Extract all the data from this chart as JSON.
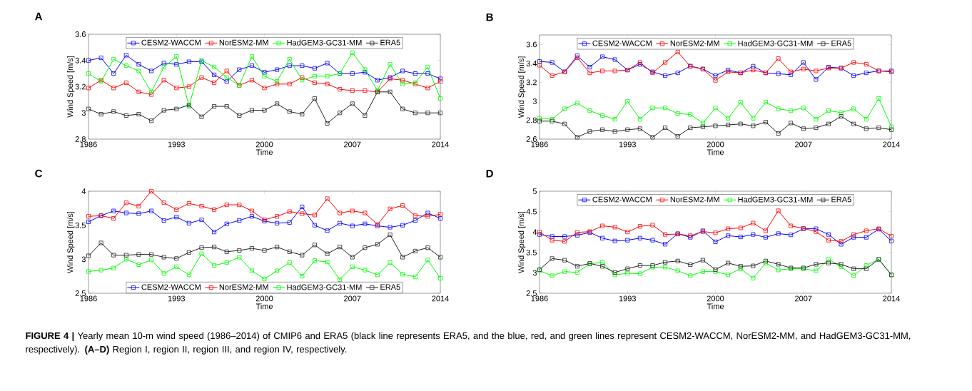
{
  "chart_data": [
    {
      "type": "line",
      "title": "A",
      "xlabel": "Time",
      "ylabel": "Wind Speed [m/s]",
      "x": [
        1986,
        1987,
        1988,
        1989,
        1990,
        1991,
        1992,
        1993,
        1994,
        1995,
        1996,
        1997,
        1998,
        1999,
        2000,
        2001,
        2002,
        2003,
        2004,
        2005,
        2006,
        2007,
        2008,
        2009,
        2010,
        2011,
        2012,
        2013,
        2014
      ],
      "xlim": [
        1986,
        2014
      ],
      "xticks": [
        1986,
        1993,
        2000,
        2007,
        2014
      ],
      "ylim": [
        2.8,
        3.6
      ],
      "yticks": [
        2.8,
        3,
        3.2,
        3.4,
        3.6
      ],
      "legend": "top",
      "marker": "square",
      "line_style": "solid",
      "series": [
        {
          "name": "CESM2-WACCM",
          "color": "#0000ff",
          "values": [
            3.4,
            3.42,
            3.3,
            3.44,
            3.37,
            3.32,
            3.38,
            3.37,
            3.39,
            3.39,
            3.29,
            3.24,
            3.33,
            3.36,
            3.31,
            3.33,
            3.36,
            3.36,
            3.34,
            3.38,
            3.3,
            3.3,
            3.31,
            3.25,
            3.27,
            3.32,
            3.3,
            3.3,
            3.26
          ]
        },
        {
          "name": "NorESM2-MM",
          "color": "#ff0000",
          "values": [
            3.19,
            3.25,
            3.19,
            3.23,
            3.16,
            3.14,
            3.25,
            3.19,
            3.2,
            3.27,
            3.23,
            3.32,
            3.21,
            3.25,
            3.19,
            3.22,
            3.22,
            3.27,
            3.23,
            3.22,
            3.18,
            3.17,
            3.17,
            3.16,
            3.26,
            3.25,
            3.22,
            3.19,
            3.24
          ]
        },
        {
          "name": "HadGEM3-GC31-MM",
          "color": "#00ff00",
          "values": [
            3.3,
            3.24,
            3.41,
            3.36,
            3.32,
            3.16,
            3.35,
            3.43,
            3.05,
            3.4,
            3.35,
            3.27,
            3.21,
            3.43,
            3.28,
            3.24,
            3.41,
            3.25,
            3.28,
            3.28,
            3.3,
            3.46,
            3.33,
            3.17,
            3.37,
            3.22,
            3.23,
            3.35,
            3.11
          ]
        },
        {
          "name": "ERA5",
          "color": "#222222",
          "values": [
            3.03,
            2.99,
            3.01,
            2.98,
            2.99,
            2.94,
            3.02,
            3.03,
            3.06,
            2.97,
            3.05,
            3.05,
            2.98,
            3.02,
            3.02,
            3.07,
            3.01,
            2.99,
            3.11,
            2.92,
            3.0,
            3.07,
            2.98,
            3.16,
            3.16,
            3.03,
            3.0,
            3.0,
            3.0
          ]
        }
      ]
    },
    {
      "type": "line",
      "title": "B",
      "xlabel": "Time",
      "ylabel": "Wind Speed [m/s]",
      "x": [
        1986,
        1987,
        1988,
        1989,
        1990,
        1991,
        1992,
        1993,
        1994,
        1995,
        1996,
        1997,
        1998,
        1999,
        2000,
        2001,
        2002,
        2003,
        2004,
        2005,
        2006,
        2007,
        2008,
        2009,
        2010,
        2011,
        2012,
        2013,
        2014
      ],
      "xlim": [
        1986,
        2014
      ],
      "xticks": [
        1986,
        1993,
        2000,
        2007,
        2014
      ],
      "ylim": [
        2.6,
        3.7
      ],
      "yticks": [
        2.6,
        2.8,
        3,
        3.2,
        3.4,
        3.6
      ],
      "legend": "top",
      "marker": "square",
      "line_style": "solid",
      "series": [
        {
          "name": "CESM2-WACCM",
          "color": "#0000ff",
          "values": [
            3.42,
            3.41,
            3.31,
            3.48,
            3.36,
            3.47,
            3.44,
            3.33,
            3.39,
            3.31,
            3.27,
            3.3,
            3.37,
            3.34,
            3.27,
            3.33,
            3.3,
            3.37,
            3.3,
            3.29,
            3.28,
            3.41,
            3.23,
            3.36,
            3.35,
            3.27,
            3.3,
            3.32,
            3.32
          ]
        },
        {
          "name": "NorESM2-MM",
          "color": "#ff0000",
          "values": [
            3.38,
            3.27,
            3.31,
            3.46,
            3.3,
            3.32,
            3.32,
            3.33,
            3.41,
            3.3,
            3.41,
            3.52,
            3.37,
            3.34,
            3.22,
            3.31,
            3.3,
            3.33,
            3.3,
            3.45,
            3.31,
            3.34,
            3.32,
            3.35,
            3.35,
            3.41,
            3.39,
            3.32,
            3.31
          ]
        },
        {
          "name": "HadGEM3-GC31-MM",
          "color": "#00ff00",
          "values": [
            2.82,
            2.81,
            2.92,
            2.98,
            2.9,
            2.85,
            2.81,
            3.0,
            2.81,
            2.93,
            2.93,
            2.87,
            2.86,
            2.77,
            2.93,
            2.82,
            2.99,
            2.82,
            2.99,
            2.92,
            2.9,
            2.93,
            2.81,
            2.9,
            2.88,
            2.92,
            2.81,
            3.03,
            2.73
          ]
        },
        {
          "name": "ERA5",
          "color": "#222222",
          "values": [
            2.79,
            2.79,
            2.76,
            2.62,
            2.68,
            2.7,
            2.68,
            2.7,
            2.71,
            2.62,
            2.72,
            2.63,
            2.72,
            2.73,
            2.74,
            2.75,
            2.76,
            2.74,
            2.78,
            2.66,
            2.77,
            2.71,
            2.72,
            2.76,
            2.84,
            2.76,
            2.71,
            2.72,
            2.7
          ]
        }
      ]
    },
    {
      "type": "line",
      "title": "C",
      "xlabel": "Time",
      "ylabel": "Wind Speed [m/s]",
      "x": [
        1986,
        1987,
        1988,
        1989,
        1990,
        1991,
        1992,
        1993,
        1994,
        1995,
        1996,
        1997,
        1998,
        1999,
        2000,
        2001,
        2002,
        2003,
        2004,
        2005,
        2006,
        2007,
        2008,
        2009,
        2010,
        2011,
        2012,
        2013,
        2014
      ],
      "xlim": [
        1986,
        2014
      ],
      "xticks": [
        1986,
        1993,
        2000,
        2007,
        2014
      ],
      "ylim": [
        2.5,
        4
      ],
      "yticks": [
        2.5,
        3,
        3.5,
        4
      ],
      "legend": "bottom",
      "marker": "square",
      "line_style": "solid",
      "series": [
        {
          "name": "CESM2-WACCM",
          "color": "#0000ff",
          "values": [
            3.55,
            3.64,
            3.71,
            3.68,
            3.67,
            3.71,
            3.57,
            3.62,
            3.53,
            3.58,
            3.4,
            3.52,
            3.57,
            3.63,
            3.56,
            3.53,
            3.54,
            3.77,
            3.5,
            3.42,
            3.53,
            3.49,
            3.52,
            3.49,
            3.47,
            3.5,
            3.57,
            3.68,
            3.6
          ]
        },
        {
          "name": "NorESM2-MM",
          "color": "#ff0000",
          "values": [
            3.63,
            3.64,
            3.6,
            3.83,
            3.78,
            4.0,
            3.83,
            3.73,
            3.82,
            3.78,
            3.73,
            3.8,
            3.8,
            3.71,
            3.58,
            3.63,
            3.7,
            3.67,
            3.65,
            3.89,
            3.68,
            3.71,
            3.68,
            3.51,
            3.74,
            3.79,
            3.64,
            3.63,
            3.66
          ]
        },
        {
          "name": "HadGEM3-GC31-MM",
          "color": "#00ff00",
          "values": [
            2.82,
            2.84,
            2.87,
            3.0,
            2.92,
            2.99,
            2.79,
            2.89,
            2.77,
            3.08,
            2.91,
            2.95,
            3.03,
            2.83,
            2.71,
            2.83,
            2.95,
            2.75,
            2.98,
            2.96,
            2.7,
            2.89,
            2.84,
            2.77,
            2.95,
            2.78,
            2.74,
            2.99,
            2.72
          ]
        },
        {
          "name": "ERA5",
          "color": "#222222",
          "values": [
            3.05,
            3.24,
            3.06,
            3.06,
            3.07,
            3.07,
            3.03,
            3.01,
            3.1,
            3.17,
            3.18,
            3.11,
            3.13,
            3.16,
            3.13,
            3.18,
            3.11,
            3.06,
            3.21,
            3.08,
            3.18,
            3.03,
            3.17,
            3.22,
            3.36,
            3.03,
            3.12,
            3.17,
            3.03
          ]
        }
      ]
    },
    {
      "type": "line",
      "title": "D",
      "xlabel": "Time",
      "ylabel": "Wind Speed [m/s]",
      "x": [
        1986,
        1987,
        1988,
        1989,
        1990,
        1991,
        1992,
        1993,
        1994,
        1995,
        1996,
        1997,
        1998,
        1999,
        2000,
        2001,
        2002,
        2003,
        2004,
        2005,
        2006,
        2007,
        2008,
        2009,
        2010,
        2011,
        2012,
        2013,
        2014
      ],
      "xlim": [
        1986,
        2014
      ],
      "xticks": [
        1986,
        1993,
        2000,
        2007,
        2014
      ],
      "ylim": [
        2.5,
        5
      ],
      "yticks": [
        2.5,
        3,
        3.5,
        4,
        4.5,
        5
      ],
      "legend": "top",
      "marker": "square",
      "line_style": "solid",
      "series": [
        {
          "name": "CESM2-WACCM",
          "color": "#0000ff",
          "values": [
            3.94,
            3.89,
            3.89,
            3.92,
            3.99,
            3.85,
            3.78,
            3.8,
            3.85,
            3.8,
            3.7,
            3.96,
            3.87,
            4.03,
            3.76,
            3.91,
            3.88,
            3.94,
            3.87,
            3.96,
            3.93,
            4.08,
            4.08,
            3.94,
            3.7,
            3.87,
            3.87,
            4.07,
            3.78
          ]
        },
        {
          "name": "NorESM2-MM",
          "color": "#ff0000",
          "values": [
            4.0,
            3.8,
            3.77,
            3.99,
            4.01,
            4.15,
            4.12,
            4.0,
            4.14,
            4.17,
            3.94,
            3.95,
            3.91,
            4.01,
            3.98,
            4.08,
            4.1,
            4.22,
            4.03,
            4.52,
            4.15,
            4.09,
            4.01,
            3.8,
            3.77,
            3.94,
            4.03,
            4.08,
            3.9
          ]
        },
        {
          "name": "HadGEM3-GC31-MM",
          "color": "#00ff00",
          "values": [
            3.05,
            2.93,
            3.03,
            3.01,
            3.22,
            3.26,
            2.95,
            2.99,
            2.98,
            3.14,
            3.14,
            3.05,
            2.93,
            3.03,
            3.03,
            2.95,
            3.1,
            2.87,
            3.24,
            3.07,
            3.1,
            3.1,
            3.05,
            3.33,
            3.15,
            2.93,
            3.18,
            3.33,
            2.95
          ]
        },
        {
          "name": "ERA5",
          "color": "#222222",
          "values": [
            3.08,
            3.35,
            3.31,
            3.16,
            3.23,
            3.16,
            3.01,
            3.1,
            3.18,
            3.18,
            3.26,
            3.29,
            3.2,
            3.31,
            3.08,
            3.24,
            3.16,
            3.17,
            3.29,
            3.21,
            3.12,
            3.12,
            3.21,
            3.24,
            3.21,
            3.1,
            3.1,
            3.33,
            2.95
          ]
        }
      ],
      "annotations": [
        "**FIGURE 4 |** Yearly mean 10-m wind speed (1986–2014) of CMIP6 and ERA5 (black line represents ERA5, and the blue, red, and green lines represent CESM2-WACCM, NorESM2-MM, and HadGEM3-GC31-MM, respectively). **(A–D)** Region I, region II, region III, and region IV, respectively."
      ]
    }
  ]
}
